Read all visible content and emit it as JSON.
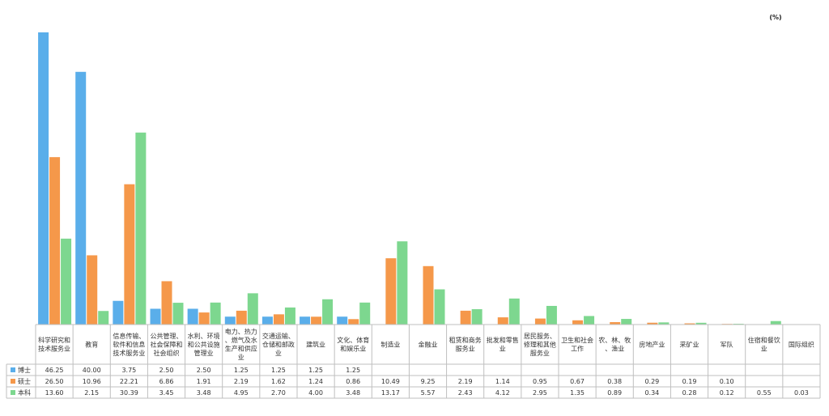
{
  "unit_label": "(%)",
  "chart_data": {
    "type": "bar",
    "title": "",
    "xlabel": "",
    "ylabel": "",
    "unit": "(%)",
    "ylim": [
      0,
      46.25
    ],
    "grid": false,
    "legend": "table-left",
    "categories": [
      "科学研究和技术服务业",
      "教育",
      "信息传输、软件和信息技术服务业",
      "公共管理、社会保障和社会组织",
      "水利、环境和公共设施管理业",
      "电力、热力、燃气及水生产和供应业",
      "交通运输、仓储和邮政业",
      "建筑业",
      "文化、体育和娱乐业",
      "制造业",
      "金融业",
      "租赁和商务服务业",
      "批发和零售业",
      "居民服务、修理和其他服务业",
      "卫生和社会工作",
      "农、林、牧、渔业",
      "房地产业",
      "采矿业",
      "军队",
      "住宿和餐饮业",
      "国际组织"
    ],
    "category_lines": [
      [
        "科学研究和",
        "技术服务业"
      ],
      [
        "教育"
      ],
      [
        "信息传输、",
        "软件和信息",
        "技术服务业"
      ],
      [
        "公共管理、",
        "社会保障和",
        "社会组织"
      ],
      [
        "水利、环境",
        "和公共设施",
        "管理业"
      ],
      [
        "电力、热力",
        "、燃气及水",
        "生产和供应",
        "业"
      ],
      [
        "交通运输、",
        "仓储和邮政",
        "业"
      ],
      [
        "建筑业"
      ],
      [
        "文化、体育",
        "和娱乐业"
      ],
      [
        "制造业"
      ],
      [
        "金融业"
      ],
      [
        "租赁和商务",
        "服务业"
      ],
      [
        "批发和零售",
        "业"
      ],
      [
        "居民服务、",
        "修理和其他",
        "服务业"
      ],
      [
        "卫生和社会",
        "工作"
      ],
      [
        "农、林、牧",
        "、渔业"
      ],
      [
        "房地产业"
      ],
      [
        "采矿业"
      ],
      [
        "军队"
      ],
      [
        "住宿和餐饮",
        "业"
      ],
      [
        "国际组织"
      ]
    ],
    "series": [
      {
        "name": "博士",
        "color": "#5aaeea",
        "values": [
          46.25,
          40.0,
          3.75,
          2.5,
          2.5,
          1.25,
          1.25,
          1.25,
          1.25,
          null,
          null,
          null,
          null,
          null,
          null,
          null,
          null,
          null,
          null,
          null,
          null
        ],
        "labels": [
          "46.25",
          "40.00",
          "3.75",
          "2.50",
          "2.50",
          "1.25",
          "1.25",
          "1.25",
          "1.25",
          "",
          "",
          "",
          "",
          "",
          "",
          "",
          "",
          "",
          "",
          "",
          ""
        ]
      },
      {
        "name": "硕士",
        "color": "#f5984a",
        "values": [
          26.5,
          10.96,
          22.21,
          6.86,
          1.91,
          2.19,
          1.62,
          1.24,
          0.86,
          10.49,
          9.25,
          2.19,
          1.14,
          0.95,
          0.67,
          0.38,
          0.29,
          0.19,
          0.1,
          null,
          null
        ],
        "labels": [
          "26.50",
          "10.96",
          "22.21",
          "6.86",
          "1.91",
          "2.19",
          "1.62",
          "1.24",
          "0.86",
          "10.49",
          "9.25",
          "2.19",
          "1.14",
          "0.95",
          "0.67",
          "0.38",
          "0.29",
          "0.19",
          "0.10",
          "",
          ""
        ]
      },
      {
        "name": "本科",
        "color": "#7dd78f",
        "values": [
          13.6,
          2.15,
          30.39,
          3.45,
          3.48,
          4.95,
          2.7,
          4.0,
          3.48,
          13.17,
          5.57,
          2.43,
          4.12,
          2.95,
          1.35,
          0.89,
          0.34,
          0.28,
          0.12,
          0.55,
          0.03
        ],
        "labels": [
          "13.60",
          "2.15",
          "30.39",
          "3.45",
          "3.48",
          "4.95",
          "2.70",
          "4.00",
          "3.48",
          "13.17",
          "5.57",
          "2.43",
          "4.12",
          "2.95",
          "1.35",
          "0.89",
          "0.34",
          "0.28",
          "0.12",
          "0.55",
          "0.03"
        ]
      }
    ]
  }
}
